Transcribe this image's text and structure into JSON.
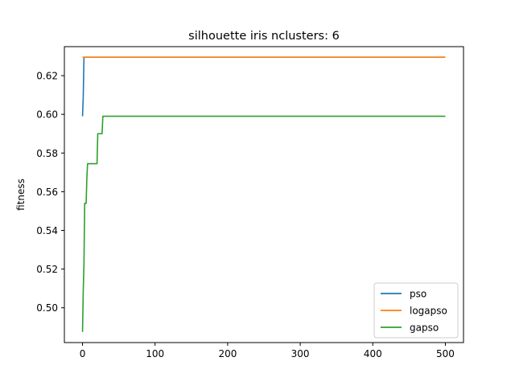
{
  "chart_data": {
    "type": "line",
    "title": "silhouette iris nclusters: 6",
    "xlabel": "",
    "ylabel": "fitness",
    "xlim": [
      -25,
      525
    ],
    "ylim": [
      0.482,
      0.635
    ],
    "xticks": [
      0,
      100,
      200,
      300,
      400,
      500
    ],
    "yticks": [
      0.5,
      0.52,
      0.54,
      0.56,
      0.58,
      0.6,
      0.62
    ],
    "ytick_labels": [
      "0.50",
      "0.52",
      "0.54",
      "0.56",
      "0.58",
      "0.60",
      "0.62"
    ],
    "grid": false,
    "legend_position": "lower-right",
    "series": [
      {
        "name": "pso",
        "color": "#1f77b4",
        "x": [
          0,
          1,
          2,
          500
        ],
        "y": [
          0.599,
          0.609,
          0.6295,
          0.6295
        ]
      },
      {
        "name": "logapso",
        "color": "#ff7f0e",
        "x": [
          0,
          500
        ],
        "y": [
          0.6295,
          0.6295
        ]
      },
      {
        "name": "gapso",
        "color": "#2ca02c",
        "x": [
          0,
          1,
          2,
          3,
          5,
          6,
          7,
          20,
          21,
          27,
          28,
          50,
          500
        ],
        "y": [
          0.4875,
          0.5085,
          0.5225,
          0.554,
          0.554,
          0.5675,
          0.5745,
          0.5745,
          0.59,
          0.59,
          0.599,
          0.599,
          0.599
        ]
      }
    ]
  }
}
